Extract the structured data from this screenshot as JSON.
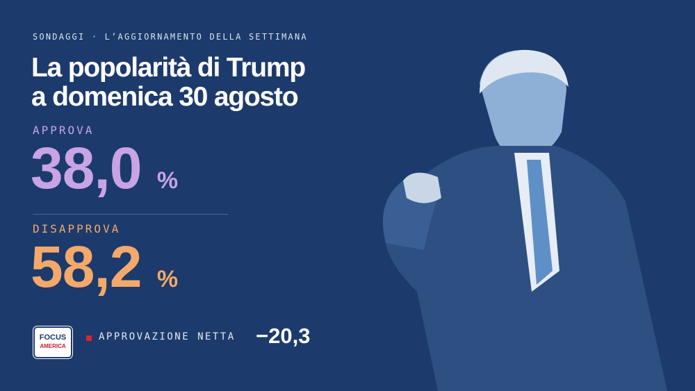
{
  "header": {
    "kicker": "SONDAGGI · L’AGGIORNAMENTO DELLA SETTIMANA",
    "title_lines": [
      "La popolarità di Trump",
      "a domenica 30 agosto"
    ]
  },
  "approve": {
    "label": "APPROVA",
    "value": "38,0",
    "unit": "%"
  },
  "disapprove": {
    "label": "DISAPPROVA",
    "value": "58,2",
    "unit": "%"
  },
  "net": {
    "label": "APPROVAZIONE NETTA",
    "value": "−20,3"
  },
  "logo": {
    "top": "FOCUS",
    "bottom": "AMERICA"
  }
}
